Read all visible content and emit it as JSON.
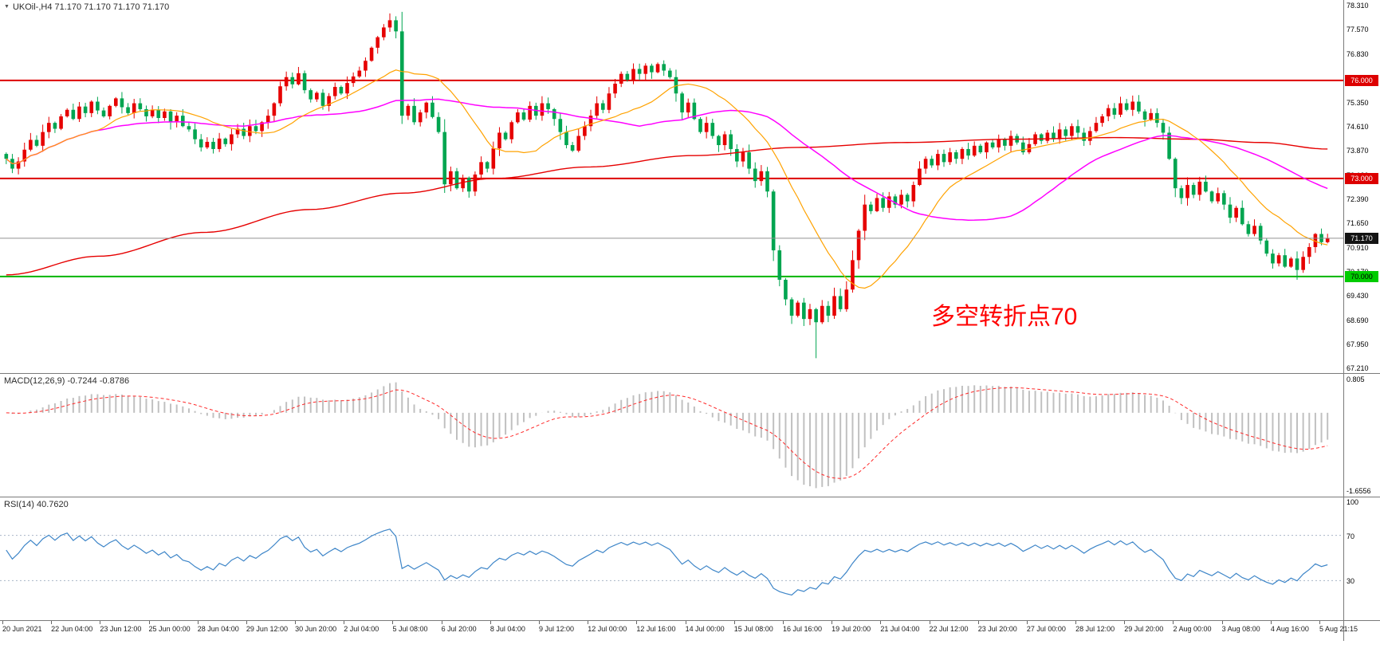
{
  "colors": {
    "bull": "#e60000",
    "bear": "#00a550",
    "ma_fast": "#ffa200",
    "ma_mid": "#ff00ff",
    "ma_slow": "#e60000",
    "macd_hist": "#c0c0c0",
    "macd_signal": "#ff2a2a",
    "rsi_line": "#3d85c8",
    "rsi_level": "#aab6c8",
    "price_line": "#909090"
  },
  "chart_data": {
    "type": "candlestick",
    "x_labels": [
      "20 Jun 2021",
      "22 Jun 04:00",
      "23 Jun 12:00",
      "25 Jun 00:00",
      "28 Jun 04:00",
      "29 Jun 12:00",
      "30 Jun 20:00",
      "2 Jul 04:00",
      "5 Jul 08:00",
      "6 Jul 20:00",
      "8 Jul 04:00",
      "9 Jul 12:00",
      "12 Jul 00:00",
      "12 Jul 16:00",
      "14 Jul 00:00",
      "15 Jul 08:00",
      "16 Jul 16:00",
      "19 Jul 20:00",
      "21 Jul 04:00",
      "22 Jul 12:00",
      "23 Jul 20:00",
      "27 Jul 00:00",
      "28 Jul 12:00",
      "29 Jul 20:00",
      "2 Aug 00:00",
      "3 Aug 08:00",
      "4 Aug 16:00",
      "5 Aug 21:15"
    ],
    "panels": [
      {
        "name": "price",
        "type": "candles",
        "title": "UKOil-,H4 71.170 71.170 71.170 71.170",
        "y_ticks": [
          "78.310",
          "77.570",
          "76.830",
          "76.090",
          "75.350",
          "74.610",
          "73.870",
          "73.130",
          "72.390",
          "71.650",
          "70.910",
          "70.170",
          "69.430",
          "68.690",
          "67.950",
          "67.210"
        ],
        "y_range": [
          67.045,
          78.46
        ],
        "closes": [
          73.6,
          73.3,
          73.52,
          73.88,
          74.18,
          74.0,
          74.42,
          74.7,
          74.52,
          74.9,
          75.1,
          74.82,
          75.2,
          75.0,
          75.35,
          75.08,
          74.9,
          75.22,
          75.45,
          75.18,
          75.0,
          75.3,
          75.12,
          74.9,
          75.1,
          74.85,
          75.05,
          74.72,
          74.92,
          74.6,
          74.5,
          74.2,
          73.95,
          74.12,
          73.9,
          74.22,
          74.05,
          74.35,
          74.52,
          74.3,
          74.6,
          74.45,
          74.72,
          74.92,
          75.3,
          75.82,
          76.1,
          75.88,
          76.22,
          75.7,
          75.42,
          75.62,
          75.22,
          75.52,
          75.8,
          75.6,
          75.92,
          76.12,
          76.3,
          76.6,
          77.0,
          77.32,
          77.62,
          77.84,
          77.5,
          74.92,
          75.22,
          74.72,
          75.02,
          75.32,
          74.88,
          74.42,
          72.82,
          73.22,
          72.7,
          73.02,
          72.6,
          73.12,
          73.5,
          73.3,
          73.92,
          74.4,
          74.2,
          74.72,
          75.02,
          74.8,
          75.22,
          74.92,
          75.3,
          75.12,
          74.82,
          74.42,
          74.02,
          73.85,
          74.3,
          74.6,
          74.92,
          75.3,
          75.1,
          75.6,
          75.9,
          76.2,
          76.02,
          76.35,
          76.2,
          76.45,
          76.25,
          76.5,
          76.3,
          76.1,
          75.6,
          75.02,
          75.32,
          74.82,
          74.42,
          74.7,
          74.3,
          74.02,
          74.35,
          73.9,
          73.52,
          73.8,
          73.3,
          72.92,
          73.22,
          72.6,
          70.8,
          69.9,
          69.3,
          68.8,
          69.2,
          68.7,
          69.0,
          68.6,
          69.1,
          68.8,
          69.4,
          69.0,
          69.6,
          70.5,
          71.4,
          72.2,
          72.0,
          72.4,
          72.1,
          72.45,
          72.2,
          72.5,
          72.3,
          72.8,
          73.3,
          73.6,
          73.4,
          73.75,
          73.5,
          73.8,
          73.6,
          73.9,
          73.7,
          74.0,
          73.8,
          74.1,
          73.95,
          74.2,
          74.0,
          74.3,
          74.1,
          73.8,
          74.05,
          74.35,
          74.15,
          74.4,
          74.2,
          74.5,
          74.3,
          74.6,
          74.4,
          74.15,
          74.45,
          74.7,
          74.9,
          75.15,
          74.95,
          75.3,
          75.1,
          75.35,
          75.05,
          74.8,
          75.0,
          74.7,
          74.4,
          73.6,
          72.7,
          72.4,
          72.8,
          72.5,
          72.9,
          72.6,
          72.3,
          72.55,
          72.2,
          71.8,
          72.1,
          71.6,
          71.3,
          71.55,
          71.1,
          70.7,
          70.4,
          70.65,
          70.3,
          70.55,
          70.2,
          70.6,
          70.9,
          71.3,
          71.05,
          71.17
        ],
        "spikes": {
          "63": {
            "high": 78.05
          },
          "133": {
            "low": 67.5
          },
          "212": {
            "low": 69.9
          }
        },
        "hlines": [
          {
            "price": 76.0,
            "label": "76.000",
            "color": "#dd0000",
            "width": 2,
            "label_bg": "#dd0000",
            "label_fg": "#ffffff"
          },
          {
            "price": 73.0,
            "label": "73.000",
            "color": "#dd0000",
            "width": 2,
            "label_bg": "#dd0000",
            "label_fg": "#ffffff"
          },
          {
            "price": 71.17,
            "label": "71.170",
            "color": "#909090",
            "width": 1,
            "label_bg": "#141414",
            "label_fg": "#ffffff"
          },
          {
            "price": 70.0,
            "label": "70.000",
            "color": "#00b400",
            "width": 2,
            "label_bg": "#00cc00",
            "label_fg": "#000000"
          }
        ],
        "ma": {
          "fast_period": 16,
          "mid_period": 40,
          "slow_anchors": [
            [
              0,
              70.05
            ],
            [
              0.07,
              70.62
            ],
            [
              0.15,
              71.35
            ],
            [
              0.23,
              72.05
            ],
            [
              0.3,
              72.55
            ],
            [
              0.37,
              73.0
            ],
            [
              0.44,
              73.35
            ],
            [
              0.52,
              73.7
            ],
            [
              0.6,
              73.95
            ],
            [
              0.68,
              74.1
            ],
            [
              0.76,
              74.2
            ],
            [
              0.84,
              74.25
            ],
            [
              0.9,
              74.2
            ],
            [
              0.95,
              74.1
            ],
            [
              1,
              73.9
            ]
          ]
        },
        "annotation": {
          "text": "多空转折点70",
          "color": "#ff0000"
        }
      },
      {
        "name": "macd",
        "type": "macd",
        "title": "MACD(12,26,9) -0.7244 -0.8786",
        "params": [
          12,
          26,
          9
        ],
        "y_max_label": "0.805",
        "y_min_label": "-1.6556"
      },
      {
        "name": "rsi",
        "type": "rsi",
        "title": "RSI(14) 40.7620",
        "period": 14,
        "levels": [
          70,
          30
        ],
        "y_labels": [
          "100",
          "70",
          "30"
        ]
      }
    ]
  }
}
